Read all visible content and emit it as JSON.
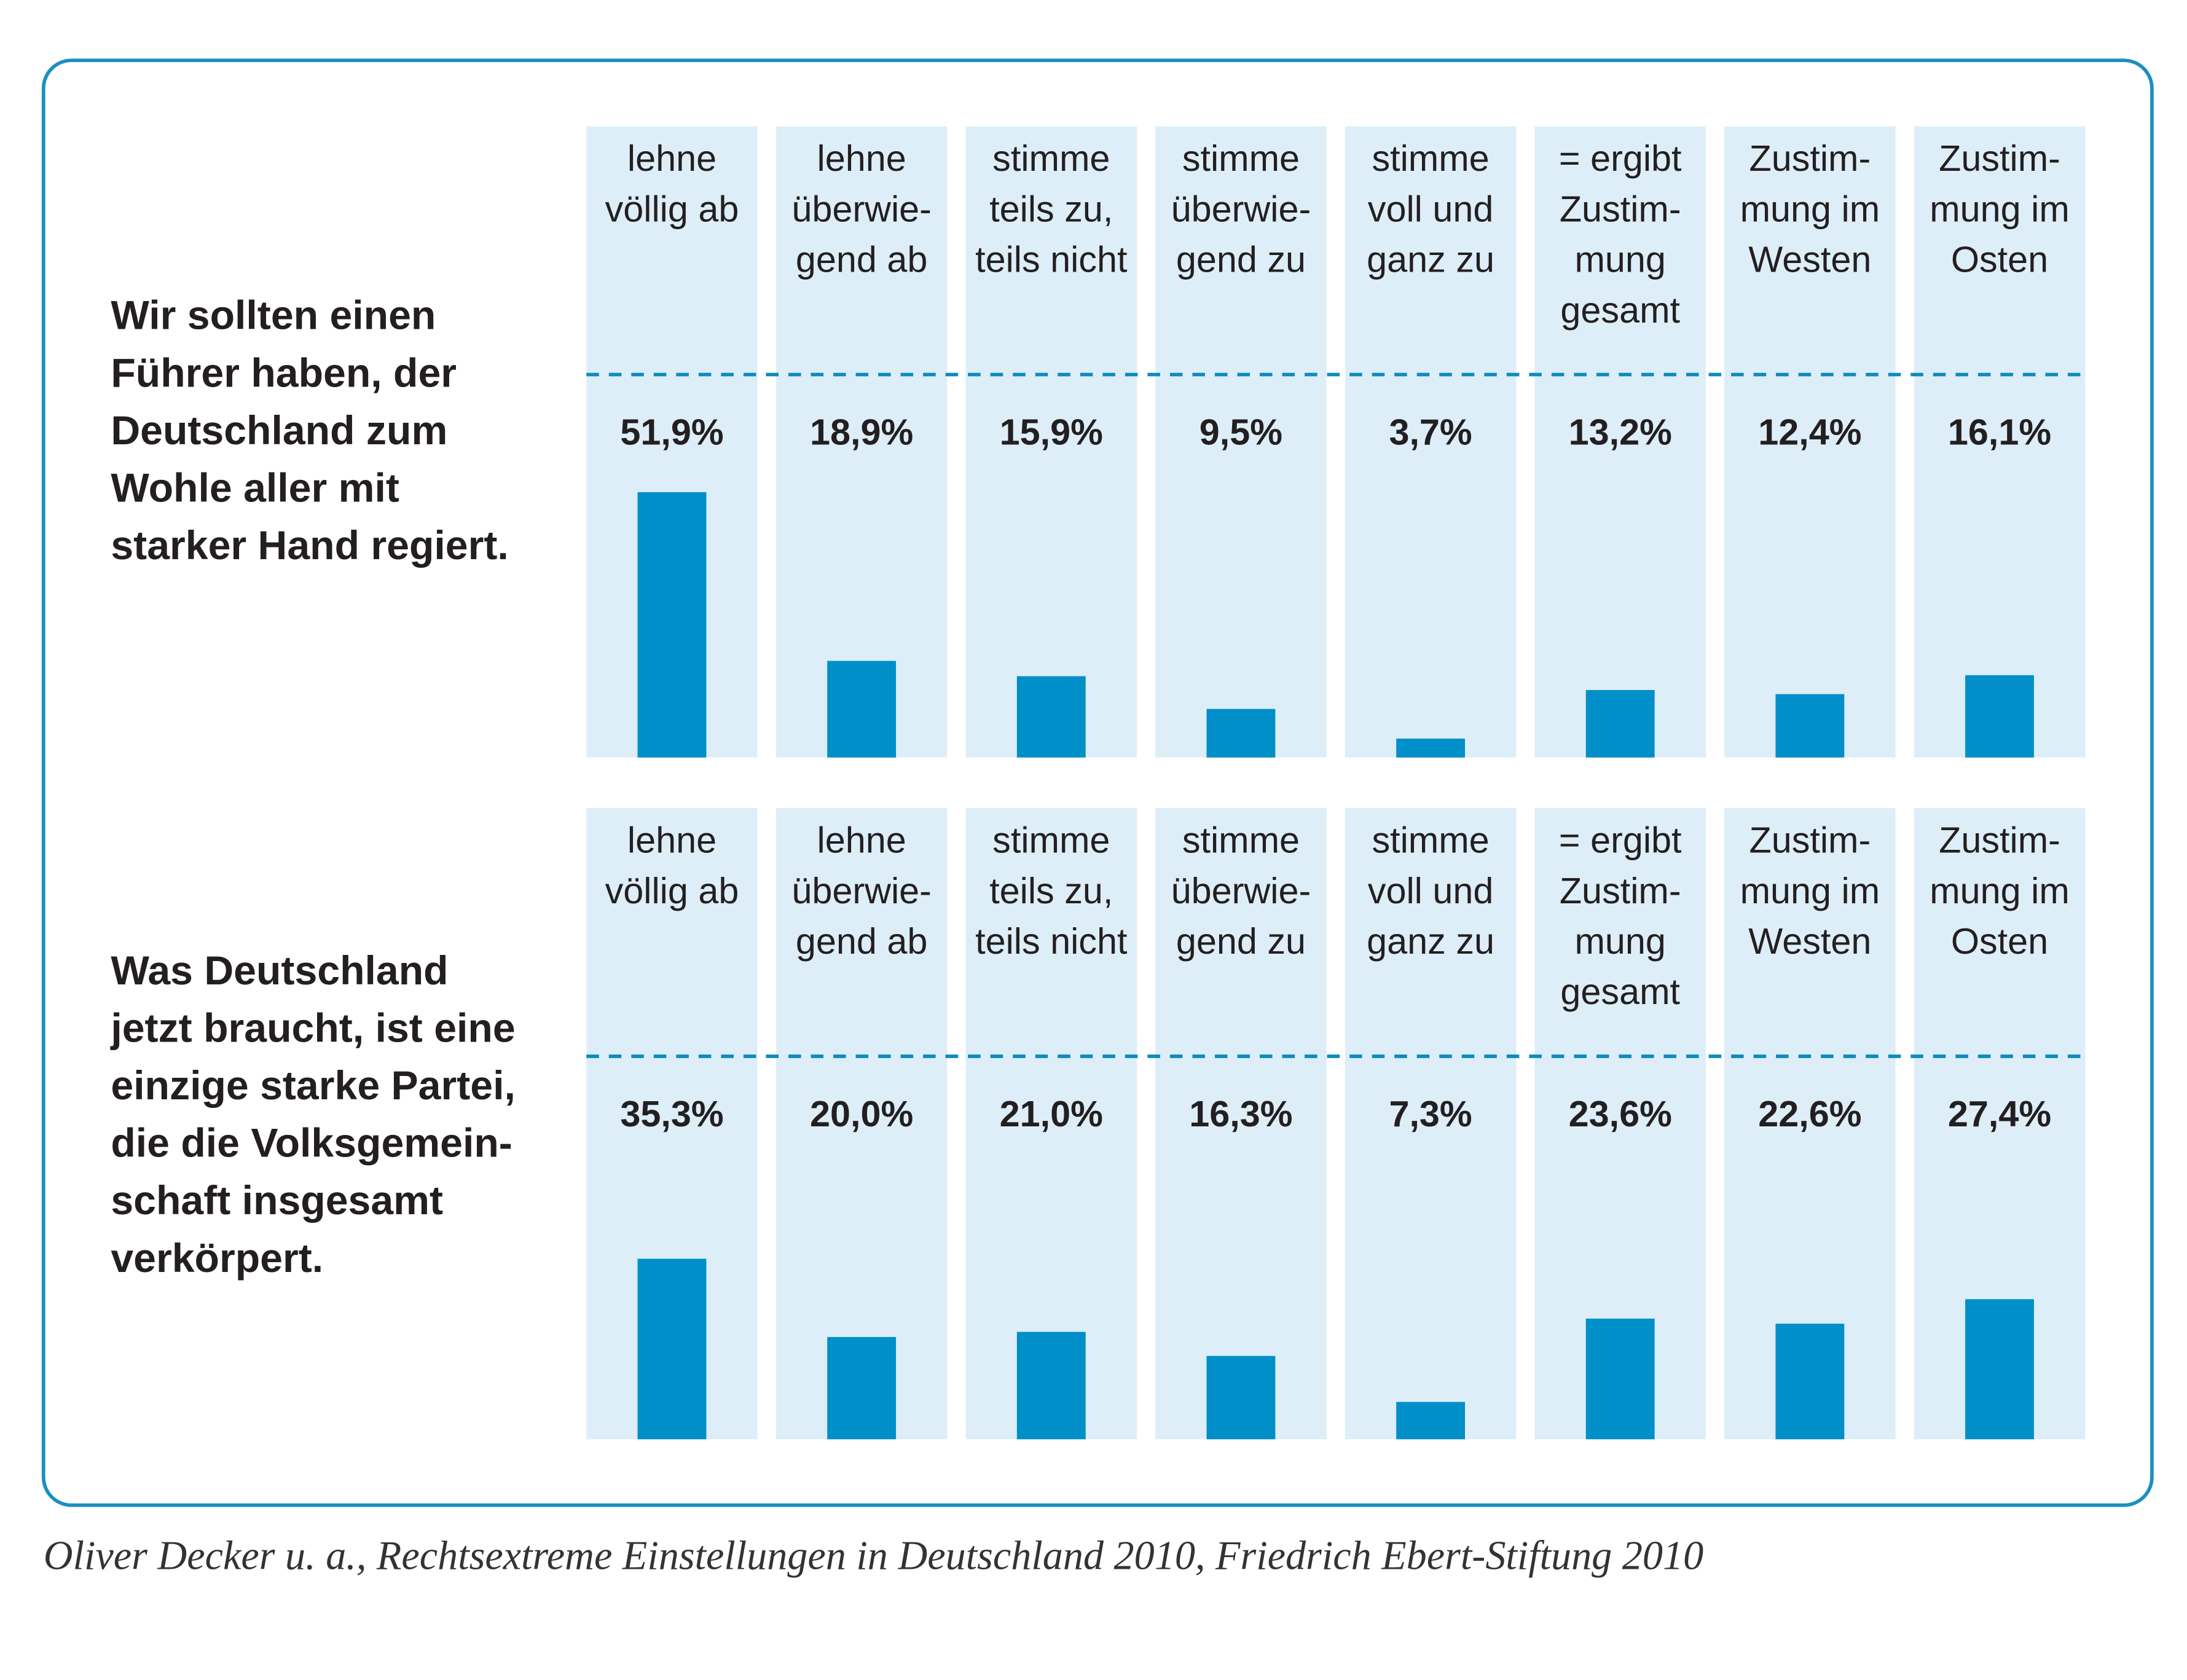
{
  "chart_data": [
    {
      "type": "bar",
      "title": [
        "Wir sollten einen",
        "Führer haben, der",
        "Deutschland zum",
        "Wohle aller mit",
        "starker Hand regiert."
      ],
      "categories": [
        [
          "lehne",
          "völlig ab"
        ],
        [
          "lehne",
          "überwie-",
          "gend ab"
        ],
        [
          "stimme",
          "teils zu,",
          "teils nicht"
        ],
        [
          "stimme",
          "überwie-",
          "gend zu"
        ],
        [
          "stimme",
          "voll und",
          "ganz zu"
        ],
        [
          "= ergibt",
          "Zustim-",
          "mung",
          "gesamt"
        ],
        [
          "Zustim-",
          "mung im",
          "Westen"
        ],
        [
          "Zustim-",
          "mung im",
          "Osten"
        ]
      ],
      "values": [
        51.9,
        18.9,
        15.9,
        9.5,
        3.7,
        13.2,
        12.4,
        16.1
      ],
      "value_labels": [
        "51,9%",
        "18,9%",
        "15,9%",
        "9,5%",
        "3,7%",
        "13,2%",
        "12,4%",
        "16,1%"
      ],
      "color": "#008fc8"
    },
    {
      "type": "bar",
      "title": [
        "Was Deutschland",
        "jetzt braucht, ist eine",
        "einzige starke Partei,",
        "die die Volksgemein-",
        "schaft insgesamt",
        "verkörpert."
      ],
      "categories": [
        [
          "lehne",
          "völlig ab"
        ],
        [
          "lehne",
          "überwie-",
          "gend ab"
        ],
        [
          "stimme",
          "teils zu,",
          "teils nicht"
        ],
        [
          "stimme",
          "überwie-",
          "gend zu"
        ],
        [
          "stimme",
          "voll und",
          "ganz zu"
        ],
        [
          "= ergibt",
          "Zustim-",
          "mung",
          "gesamt"
        ],
        [
          "Zustim-",
          "mung im",
          "Westen"
        ],
        [
          "Zustim-",
          "mung im",
          "Osten"
        ]
      ],
      "values": [
        35.3,
        20.0,
        21.0,
        16.3,
        7.3,
        23.6,
        22.6,
        27.4
      ],
      "value_labels": [
        "35,3%",
        "20,0%",
        "21,0%",
        "16,3%",
        "7,3%",
        "23,6%",
        "22,6%",
        "27,4%"
      ],
      "color": "#008fc8"
    }
  ],
  "source": "Oliver Decker u. a., Rechtsextreme Einstellungen in Deutschland 2010, Friedrich Ebert-Stiftung 2010"
}
